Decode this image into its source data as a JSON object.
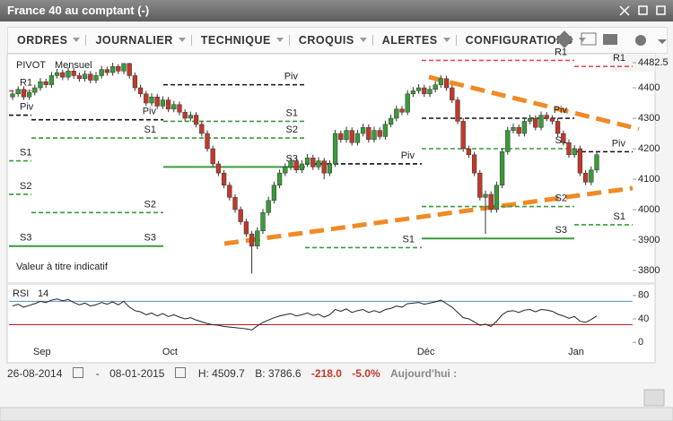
{
  "window": {
    "title": "France 40 au comptant (-)",
    "menu": [
      "ORDRES",
      "JOURNALIER",
      "TECHNIQUE",
      "CROQUIS",
      "ALERTES",
      "CONFIGURATIONS"
    ]
  },
  "chart_data": [
    {
      "type": "candlestick",
      "title": "PIVOT",
      "subtitle": "Mensuel",
      "note": "Valeur à titre indicatif",
      "up_color": "#3a9a3a",
      "down_color": "#c0392b",
      "categories": [
        null,
        null,
        null,
        null,
        "Sep",
        null,
        null,
        null,
        null,
        null,
        null,
        null,
        null,
        null,
        null,
        null,
        null,
        null,
        null,
        null,
        null,
        null,
        null,
        null,
        null,
        null,
        null,
        "Oct",
        null,
        null,
        null,
        null,
        null,
        null,
        null,
        null,
        null,
        null,
        null,
        null,
        null,
        null,
        null,
        null,
        null,
        null,
        null,
        null,
        null,
        null,
        null,
        null,
        null,
        null,
        null,
        null,
        null,
        null,
        null,
        null,
        null,
        null,
        null,
        null,
        null,
        null,
        null,
        null,
        null,
        null,
        null,
        null,
        null,
        "Déc",
        null,
        null,
        null,
        null,
        null,
        null,
        null,
        null,
        null,
        null,
        null,
        null,
        null,
        null,
        null,
        null,
        null,
        null,
        null,
        null,
        null,
        null,
        null,
        null,
        null,
        null,
        "Jan",
        null,
        null,
        null,
        null,
        null
      ],
      "candles": [
        [
          4370,
          4392,
          4360,
          4380
        ],
        [
          4380,
          4405,
          4370,
          4395
        ],
        [
          4395,
          4405,
          4360,
          4370
        ],
        [
          4370,
          4395,
          4360,
          4385
        ],
        [
          4385,
          4410,
          4375,
          4400
        ],
        [
          4400,
          4432,
          4390,
          4420
        ],
        [
          4420,
          4430,
          4400,
          4410
        ],
        [
          4410,
          4452,
          4400,
          4440
        ],
        [
          4440,
          4462,
          4430,
          4450
        ],
        [
          4450,
          4460,
          4425,
          4435
        ],
        [
          4435,
          4467,
          4425,
          4455
        ],
        [
          4455,
          4465,
          4430,
          4440
        ],
        [
          4440,
          4450,
          4420,
          4430
        ],
        [
          4430,
          4457,
          4420,
          4445
        ],
        [
          4445,
          4455,
          4415,
          4425
        ],
        [
          4425,
          4452,
          4415,
          4440
        ],
        [
          4440,
          4472,
          4430,
          4460
        ],
        [
          4460,
          4470,
          4440,
          4450
        ],
        [
          4450,
          4482.5,
          4440,
          4470
        ],
        [
          4470,
          4478,
          4445,
          4455
        ],
        [
          4455,
          4480,
          4445,
          4480
        ],
        [
          4480,
          4482,
          4430,
          4440
        ],
        [
          4440,
          4450,
          4390,
          4400
        ],
        [
          4400,
          4410,
          4370,
          4380
        ],
        [
          4380,
          4390,
          4340,
          4350
        ],
        [
          4350,
          4382,
          4340,
          4370
        ],
        [
          4370,
          4380,
          4330,
          4340
        ],
        [
          4340,
          4372,
          4330,
          4360
        ],
        [
          4360,
          4370,
          4320,
          4330
        ],
        [
          4330,
          4357,
          4320,
          4345
        ],
        [
          4345,
          4355,
          4310,
          4320
        ],
        [
          4320,
          4330,
          4290,
          4300
        ],
        [
          4300,
          4322,
          4290,
          4310
        ],
        [
          4310,
          4320,
          4270,
          4280
        ],
        [
          4280,
          4290,
          4240,
          4250
        ],
        [
          4250,
          4260,
          4190,
          4200
        ],
        [
          4200,
          4210,
          4140,
          4150
        ],
        [
          4150,
          4160,
          4110,
          4120
        ],
        [
          4120,
          4130,
          4070,
          4080
        ],
        [
          4080,
          4090,
          4030,
          4040
        ],
        [
          4040,
          4050,
          3990,
          4000
        ],
        [
          4000,
          4010,
          3950,
          3960
        ],
        [
          3960,
          3970,
          3910,
          3920
        ],
        [
          3920,
          3930,
          3790,
          3880
        ],
        [
          3880,
          3942,
          3870,
          3930
        ],
        [
          3930,
          4002,
          3920,
          3990
        ],
        [
          3990,
          4042,
          3980,
          4030
        ],
        [
          4030,
          4092,
          4020,
          4080
        ],
        [
          4080,
          4132,
          4070,
          4120
        ],
        [
          4120,
          4152,
          4110,
          4140
        ],
        [
          4140,
          4172,
          4130,
          4160
        ],
        [
          4160,
          4170,
          4120,
          4130
        ],
        [
          4130,
          4162,
          4120,
          4150
        ],
        [
          4150,
          4182,
          4140,
          4170
        ],
        [
          4170,
          4180,
          4130,
          4140
        ],
        [
          4140,
          4172,
          4130,
          4160
        ],
        [
          4160,
          4170,
          4100,
          4120
        ],
        [
          4120,
          4162,
          4110,
          4150
        ],
        [
          4150,
          4262,
          4140,
          4250
        ],
        [
          4250,
          4260,
          4220,
          4230
        ],
        [
          4230,
          4272,
          4220,
          4260
        ],
        [
          4260,
          4270,
          4210,
          4220
        ],
        [
          4220,
          4262,
          4210,
          4250
        ],
        [
          4250,
          4282,
          4240,
          4270
        ],
        [
          4270,
          4280,
          4220,
          4230
        ],
        [
          4230,
          4272,
          4220,
          4260
        ],
        [
          4260,
          4270,
          4230,
          4240
        ],
        [
          4240,
          4292,
          4230,
          4280
        ],
        [
          4280,
          4312,
          4270,
          4300
        ],
        [
          4300,
          4342,
          4290,
          4330
        ],
        [
          4330,
          4340,
          4310,
          4320
        ],
        [
          4320,
          4392,
          4310,
          4380
        ],
        [
          4380,
          4402,
          4370,
          4390
        ],
        [
          4390,
          4412,
          4380,
          4400
        ],
        [
          4400,
          4410,
          4370,
          4380
        ],
        [
          4380,
          4407,
          4370,
          4395
        ],
        [
          4395,
          4422,
          4385,
          4410
        ],
        [
          4410,
          4442,
          4400,
          4430
        ],
        [
          4430,
          4440,
          4390,
          4400
        ],
        [
          4400,
          4410,
          4350,
          4360
        ],
        [
          4360,
          4370,
          4280,
          4290
        ],
        [
          4290,
          4300,
          4190,
          4200
        ],
        [
          4200,
          4210,
          4170,
          4180
        ],
        [
          4180,
          4190,
          4110,
          4120
        ],
        [
          4120,
          4130,
          4030,
          4040
        ],
        [
          4040,
          4062,
          3920,
          4050
        ],
        [
          4050,
          4060,
          3990,
          4000
        ],
        [
          4000,
          4092,
          3990,
          4080
        ],
        [
          4080,
          4202,
          4070,
          4190
        ],
        [
          4190,
          4272,
          4180,
          4260
        ],
        [
          4260,
          4282,
          4250,
          4270
        ],
        [
          4270,
          4280,
          4240,
          4250
        ],
        [
          4250,
          4302,
          4240,
          4290
        ],
        [
          4290,
          4312,
          4280,
          4300
        ],
        [
          4300,
          4310,
          4260,
          4270
        ],
        [
          4270,
          4322,
          4260,
          4310
        ],
        [
          4310,
          4320,
          4290,
          4300
        ],
        [
          4300,
          4310,
          4280,
          4290
        ],
        [
          4290,
          4300,
          4240,
          4250
        ],
        [
          4250,
          4260,
          4210,
          4220
        ],
        [
          4220,
          4230,
          4170,
          4180
        ],
        [
          4180,
          4212,
          4170,
          4200
        ],
        [
          4200,
          4210,
          4110,
          4120
        ],
        [
          4120,
          4130,
          4080,
          4090
        ],
        [
          4090,
          4142,
          4080,
          4130
        ],
        [
          4130,
          4192,
          4120,
          4180
        ]
      ],
      "ylim": [
        3788,
        4506
      ],
      "yticks": [
        3800,
        3900,
        4000,
        4100,
        4200,
        4300,
        4400,
        4482.5
      ],
      "pivots": [
        {
          "levels": [
            {
              "label": "R1",
              "value": 4390,
              "color": "#e05050"
            },
            {
              "label": "Piv",
              "value": 4310,
              "color": "#111"
            },
            {
              "label": "S1",
              "value": 4160,
              "color": "#3a9a3a"
            },
            {
              "label": "S2",
              "value": 4050,
              "color": "#3a9a3a"
            },
            {
              "label": "S3",
              "value": 3880,
              "color": "#3a9a3a",
              "solid": true
            }
          ]
        },
        {
          "levels": [
            {
              "label": "Piv",
              "value": 4295,
              "color": "#111"
            },
            {
              "label": "S1",
              "value": 4235,
              "color": "#3a9a3a"
            },
            {
              "label": "S2",
              "value": 3990,
              "color": "#3a9a3a"
            },
            {
              "label": "S3",
              "value": 3880,
              "color": "#3a9a3a",
              "solid": true
            }
          ]
        },
        {
          "levels": [
            {
              "label": "Piv",
              "value": 4410,
              "color": "#111"
            },
            {
              "label": "S1",
              "value": 4290,
              "color": "#3a9a3a"
            },
            {
              "label": "S2",
              "value": 4235,
              "color": "#3a9a3a"
            },
            {
              "label": "S3",
              "value": 4140,
              "color": "#3a9a3a",
              "solid": true
            }
          ]
        },
        {
          "levels": [
            {
              "label": "Piv",
              "value": 4150,
              "color": "#111"
            },
            {
              "label": "S1",
              "value": 3875,
              "color": "#3a9a3a"
            }
          ]
        },
        {
          "levels": [
            {
              "label": "R1",
              "value": 4490,
              "color": "#e05050"
            },
            {
              "label": "Piv",
              "value": 4300,
              "color": "#111"
            },
            {
              "label": "S1",
              "value": 4200,
              "color": "#3a9a3a"
            },
            {
              "label": "S2",
              "value": 4010,
              "color": "#3a9a3a"
            },
            {
              "label": "S3",
              "value": 3905,
              "color": "#3a9a3a",
              "solid": true
            }
          ]
        },
        {
          "levels": [
            {
              "label": "R1",
              "value": 4470,
              "color": "#e05050"
            },
            {
              "label": "Piv",
              "value": 4190,
              "color": "#111"
            },
            {
              "label": "S1",
              "value": 3950,
              "color": "#3a9a3a"
            }
          ]
        }
      ]
    },
    {
      "type": "line",
      "title": "RSI",
      "subtitle": "14",
      "color": "#222",
      "values": [
        62,
        65,
        60,
        63,
        66,
        70,
        68,
        72,
        74,
        71,
        73,
        68,
        64,
        67,
        62,
        64,
        68,
        65,
        69,
        64,
        70,
        60,
        54,
        52,
        47,
        50,
        45,
        49,
        44,
        47,
        43,
        40,
        42,
        38,
        35,
        32,
        30,
        29,
        27,
        26,
        25,
        24,
        23,
        21,
        28,
        34,
        38,
        42,
        45,
        47,
        49,
        45,
        47,
        50,
        46,
        48,
        43,
        47,
        56,
        53,
        57,
        51,
        54,
        56,
        51,
        54,
        51,
        56,
        58,
        62,
        60,
        66,
        67,
        68,
        65,
        67,
        69,
        72,
        66,
        60,
        51,
        42,
        40,
        35,
        29,
        31,
        27,
        36,
        47,
        53,
        54,
        51,
        55,
        56,
        52,
        56,
        55,
        53,
        48,
        45,
        41,
        44,
        36,
        34,
        39,
        45
      ],
      "ylim": [
        -9,
        92
      ],
      "yticks": [
        0,
        40,
        80
      ],
      "levels": [
        {
          "value": 70,
          "color": "#5a8fc8"
        },
        {
          "value": 30,
          "color": "#b02020"
        }
      ]
    }
  ],
  "footer": {
    "from": "26-08-2014",
    "separator": "-",
    "to": "08-01-2015",
    "high": "H: 4509.7",
    "low": "B: 3786.6",
    "change": "-218.0",
    "change_pct": "-5.0%",
    "today": "Aujourd'hui :"
  }
}
